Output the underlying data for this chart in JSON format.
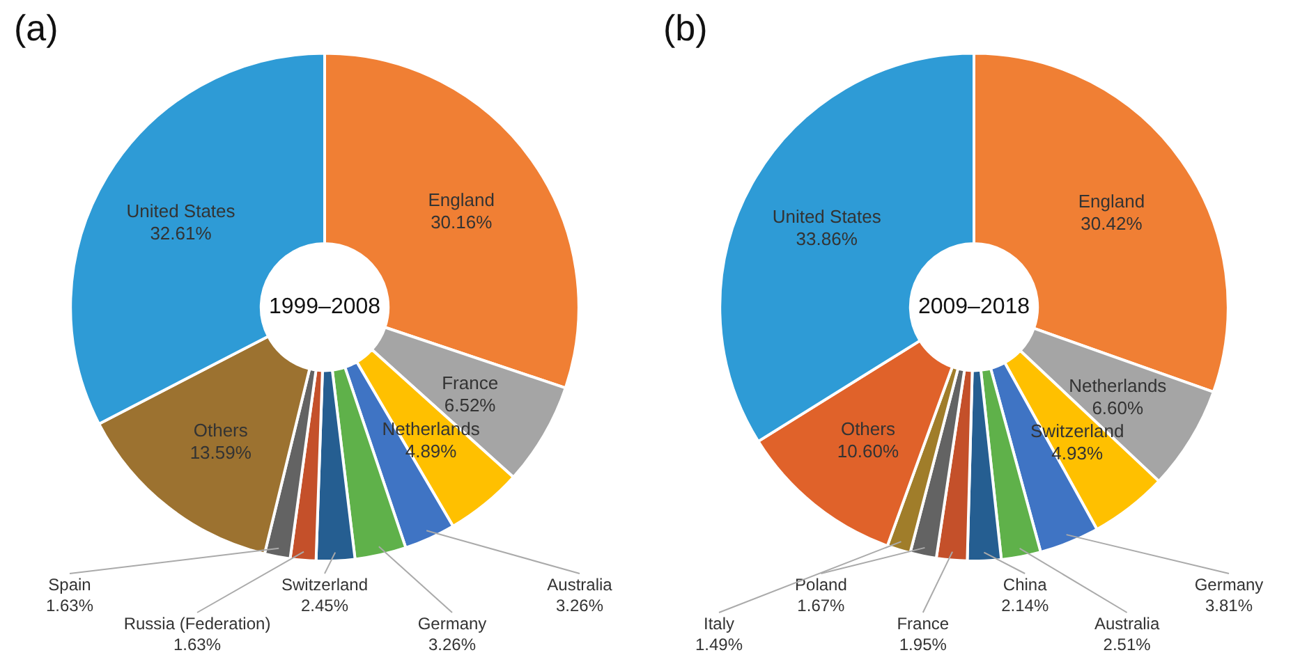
{
  "chart_data": [
    {
      "type": "donut",
      "title": "(a)",
      "subtitle": "1999–2008",
      "legend": false,
      "categories": [
        "England",
        "France",
        "Netherlands",
        "Australia",
        "Germany",
        "Switzerland",
        "Russia (Federation)",
        "Spain",
        "Others",
        "United States"
      ],
      "values": [
        30.16,
        6.52,
        4.89,
        3.26,
        3.26,
        2.45,
        1.63,
        1.63,
        13.59,
        32.61
      ],
      "value_labels": [
        "30.16%",
        "6.52%",
        "4.89%",
        "3.26%",
        "3.26%",
        "2.45%",
        "1.63%",
        "1.63%",
        "13.59%",
        "32.61%"
      ],
      "colors": [
        "#f07f34",
        "#a5a5a5",
        "#ffc000",
        "#3f74c4",
        "#5fb14a",
        "#255e91",
        "#c4502a",
        "#636363",
        "#9c7230",
        "#2e9bd6"
      ]
    },
    {
      "type": "donut",
      "title": "(b)",
      "subtitle": "2009–2018",
      "legend": false,
      "categories": [
        "England",
        "Netherlands",
        "Switzerland",
        "Germany",
        "Australia",
        "China",
        "France",
        "Poland",
        "Italy",
        "Others",
        "United States"
      ],
      "values": [
        30.42,
        6.6,
        4.93,
        3.81,
        2.51,
        2.14,
        1.95,
        1.67,
        1.49,
        10.6,
        33.86
      ],
      "value_labels": [
        "30.42%",
        "6.60%",
        "4.93%",
        "3.81%",
        "2.51%",
        "2.14%",
        "1.95%",
        "1.67%",
        "1.49%",
        "10.60%",
        "33.86%"
      ],
      "colors": [
        "#f07f34",
        "#a5a5a5",
        "#ffc000",
        "#3f74c4",
        "#5fb14a",
        "#255e91",
        "#c4502a",
        "#636363",
        "#a07d2a",
        "#e0622a",
        "#2e9bd6"
      ]
    }
  ]
}
